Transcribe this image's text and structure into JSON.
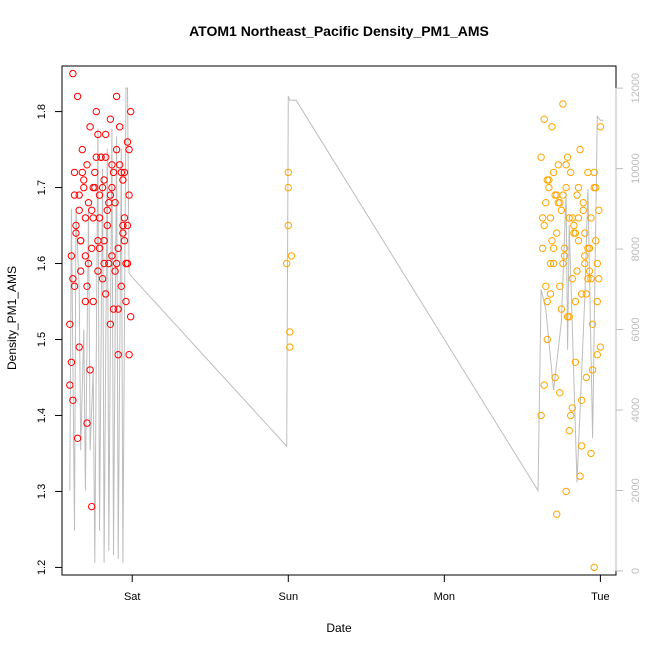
{
  "chart_data": {
    "type": "scatter",
    "title": "ATOM1 Northeast_Pacific Density_PM1_AMS",
    "xlabel": "Date",
    "ylabel": "Density_PM1_AMS",
    "x_ticks": [
      "Sat",
      "Sun",
      "Mon",
      "Tue"
    ],
    "y_ticks": [
      "1.2",
      "1.3",
      "1.4",
      "1.5",
      "1.6",
      "1.7",
      "1.8"
    ],
    "y_right_ticks": [
      "0",
      "2000",
      "4000",
      "6000",
      "8000",
      "10000",
      "12000"
    ],
    "xlim_days": [
      -0.45,
      3.1
    ],
    "ylim": [
      1.19,
      1.86
    ],
    "y_right_lim": [
      -100,
      12550
    ],
    "grid": false,
    "colors": {
      "series1": "#ff0000",
      "series2": "#ffa500",
      "secondary_line": "#bdbdbd"
    },
    "series": [
      {
        "color": "#ff0000",
        "x": [
          -0.4,
          -0.39,
          -0.38,
          -0.37,
          -0.36,
          -0.35,
          -0.34,
          -0.33,
          -0.32,
          -0.31,
          -0.3,
          -0.29,
          -0.28,
          -0.27,
          -0.26,
          -0.25,
          -0.24,
          -0.23,
          -0.22,
          -0.21,
          -0.2,
          -0.19,
          -0.18,
          -0.17,
          -0.16,
          -0.15,
          -0.14,
          -0.13,
          -0.12,
          -0.11,
          -0.1,
          -0.09,
          -0.08,
          -0.07,
          -0.06,
          -0.05,
          -0.04,
          -0.03,
          -0.02,
          -0.01,
          -0.4,
          -0.38,
          -0.36,
          -0.34,
          -0.32,
          -0.3,
          -0.28,
          -0.26,
          -0.24,
          -0.22,
          -0.2,
          -0.18,
          -0.16,
          -0.14,
          -0.12,
          -0.1,
          -0.08,
          -0.06,
          -0.04,
          -0.02,
          -0.39,
          -0.37,
          -0.35,
          -0.33,
          -0.31,
          -0.29,
          -0.27,
          -0.25,
          -0.23,
          -0.21,
          -0.19,
          -0.17,
          -0.15,
          -0.13,
          -0.11,
          -0.09,
          -0.07,
          -0.05,
          -0.03,
          -0.01,
          -0.38,
          -0.34,
          -0.3,
          -0.26,
          -0.22,
          -0.18,
          -0.14,
          -0.1,
          -0.06,
          -0.02,
          -0.37,
          -0.33,
          -0.29,
          -0.25,
          -0.21,
          -0.17,
          -0.13,
          -0.09,
          -0.05,
          -0.03
        ],
        "y": [
          1.52,
          1.61,
          1.85,
          1.72,
          1.64,
          1.82,
          1.69,
          1.59,
          1.75,
          1.7,
          1.66,
          1.73,
          1.6,
          1.78,
          1.67,
          1.55,
          1.72,
          1.8,
          1.63,
          1.69,
          1.74,
          1.58,
          1.71,
          1.77,
          1.65,
          1.6,
          1.79,
          1.7,
          1.54,
          1.68,
          1.75,
          1.62,
          1.73,
          1.57,
          1.71,
          1.66,
          1.6,
          1.76,
          1.69,
          1.8,
          1.44,
          1.58,
          1.65,
          1.49,
          1.72,
          1.61,
          1.68,
          1.28,
          1.7,
          1.59,
          1.74,
          1.63,
          1.67,
          1.52,
          1.72,
          1.6,
          1.78,
          1.65,
          1.55,
          1.75,
          1.47,
          1.69,
          1.37,
          1.63,
          1.71,
          1.57,
          1.46,
          1.66,
          1.74,
          1.62,
          1.7,
          1.56,
          1.68,
          1.73,
          1.59,
          1.48,
          1.72,
          1.63,
          1.6,
          1.53,
          1.42,
          1.67,
          1.55,
          1.62,
          1.77,
          1.6,
          1.69,
          1.82,
          1.64,
          1.48,
          1.57,
          1.63,
          1.39,
          1.7,
          1.66,
          1.74,
          1.61,
          1.54,
          1.72,
          1.65
        ]
      },
      {
        "color": "#ffa500",
        "x": [
          0.99,
          1.0,
          1.0,
          1.0,
          1.01,
          1.01,
          1.02,
          2.62,
          2.63,
          2.64,
          2.65,
          2.66,
          2.67,
          2.68,
          2.69,
          2.7,
          2.71,
          2.72,
          2.73,
          2.74,
          2.75,
          2.76,
          2.77,
          2.78,
          2.79,
          2.8,
          2.81,
          2.82,
          2.83,
          2.84,
          2.85,
          2.86,
          2.87,
          2.88,
          2.89,
          2.9,
          2.91,
          2.92,
          2.93,
          2.94,
          2.95,
          2.96,
          2.97,
          2.98,
          2.99,
          3.0,
          2.62,
          2.64,
          2.66,
          2.68,
          2.7,
          2.72,
          2.74,
          2.76,
          2.78,
          2.8,
          2.82,
          2.84,
          2.86,
          2.88,
          2.9,
          2.92,
          2.94,
          2.96,
          2.98,
          3.0,
          2.63,
          2.65,
          2.67,
          2.69,
          2.71,
          2.73,
          2.75,
          2.77,
          2.79,
          2.81,
          2.83,
          2.85,
          2.87,
          2.89,
          2.91,
          2.93,
          2.95,
          2.97,
          2.99,
          2.64,
          2.68,
          2.72,
          2.76,
          2.8,
          2.84,
          2.88,
          2.92,
          2.96,
          2.7,
          2.78,
          2.86,
          2.94,
          2.66,
          2.74,
          2.82,
          2.9,
          2.98
        ],
        "y": [
          1.6,
          1.7,
          1.65,
          1.72,
          1.51,
          1.49,
          1.61,
          1.74,
          1.62,
          1.79,
          1.68,
          1.55,
          1.71,
          1.66,
          1.78,
          1.6,
          1.69,
          1.64,
          1.73,
          1.57,
          1.67,
          1.81,
          1.62,
          1.7,
          1.53,
          1.66,
          1.72,
          1.58,
          1.64,
          1.47,
          1.69,
          1.63,
          1.75,
          1.56,
          1.68,
          1.61,
          1.45,
          1.72,
          1.59,
          1.66,
          1.52,
          1.7,
          1.63,
          1.48,
          1.67,
          1.78,
          1.4,
          1.65,
          1.71,
          1.56,
          1.62,
          1.69,
          1.43,
          1.6,
          1.73,
          1.38,
          1.66,
          1.55,
          1.7,
          1.42,
          1.64,
          1.58,
          1.35,
          1.72,
          1.6,
          1.49,
          1.66,
          1.57,
          1.7,
          1.63,
          1.45,
          1.68,
          1.54,
          1.61,
          1.74,
          1.4,
          1.65,
          1.59,
          1.32,
          1.67,
          1.56,
          1.62,
          1.46,
          1.7,
          1.58,
          1.44,
          1.6,
          1.27,
          1.69,
          1.53,
          1.64,
          1.36,
          1.62,
          1.2,
          1.72,
          1.3,
          1.66,
          1.58,
          1.5,
          1.68,
          1.41,
          1.6,
          1.55
        ]
      }
    ],
    "secondary_line": {
      "x": [
        -0.4,
        -0.39,
        -0.37,
        -0.36,
        -0.34,
        -0.33,
        -0.31,
        -0.3,
        -0.28,
        -0.27,
        -0.25,
        -0.24,
        -0.22,
        -0.21,
        -0.19,
        -0.18,
        -0.16,
        -0.15,
        -0.13,
        -0.12,
        -0.1,
        -0.09,
        -0.07,
        -0.06,
        -0.04,
        -0.03,
        -0.02,
        0.0,
        0.99,
        1.0,
        1.01,
        1.02,
        1.03,
        1.04,
        1.05,
        2.6,
        2.61,
        2.62,
        2.65,
        2.7,
        2.75,
        2.78,
        2.79,
        2.8,
        2.85,
        2.9,
        2.92,
        2.95,
        2.98,
        3.0,
        3.02
      ],
      "y": [
        2000,
        9000,
        1000,
        9000,
        7000,
        3000,
        6000,
        2000,
        9000,
        3000,
        5000,
        200,
        11000,
        1000,
        10000,
        200,
        10500,
        500,
        11000,
        400,
        10800,
        300,
        10500,
        200,
        12000,
        12000,
        7400,
        7300,
        3100,
        11800,
        11700,
        11700,
        11700,
        11700,
        11700,
        2000,
        4400,
        7000,
        6500,
        4500,
        6200,
        9400,
        5500,
        8600,
        2200,
        6800,
        9500,
        3300,
        11300,
        11200,
        11200
      ]
    }
  }
}
